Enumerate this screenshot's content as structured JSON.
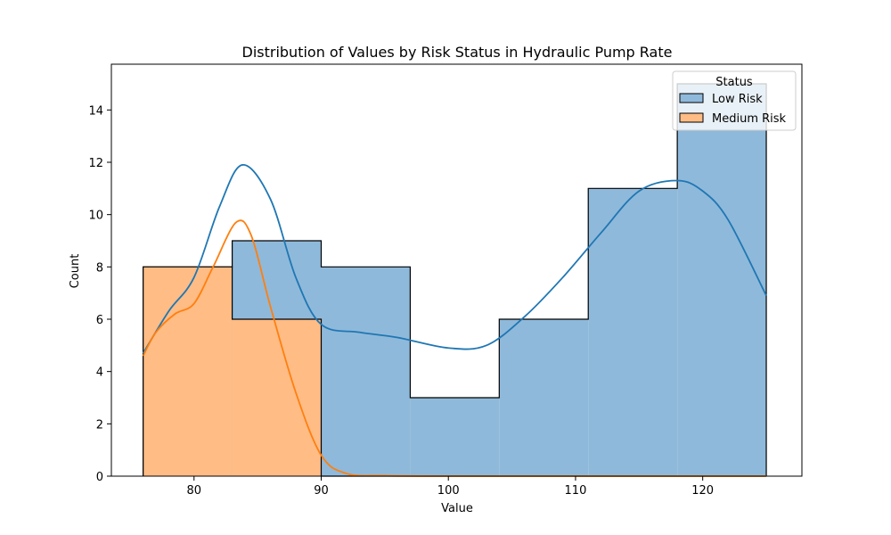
{
  "chart_data": {
    "type": "histogram",
    "title": "Distribution of Values by Risk Status in Hydraulic Pump Rate",
    "xlabel": "Value",
    "ylabel": "Count",
    "xlim": [
      73.5,
      127.8
    ],
    "ylim": [
      0,
      15.75
    ],
    "xticks": [
      80,
      90,
      100,
      110,
      120
    ],
    "yticks": [
      0,
      2,
      4,
      6,
      8,
      10,
      12,
      14
    ],
    "bin_edges": [
      76,
      83,
      90,
      97,
      104,
      111,
      118,
      125
    ],
    "legend": {
      "title": "Status",
      "position": "top-right"
    },
    "series": [
      {
        "name": "Low Risk",
        "counts": [
          8,
          9,
          8,
          3,
          6,
          11,
          15
        ],
        "fill": "#8fb9da",
        "line": "#1f77b4",
        "kde": [
          [
            76,
            4.7
          ],
          [
            78,
            6.3
          ],
          [
            80,
            7.6
          ],
          [
            82,
            10.3
          ],
          [
            83.8,
            11.9
          ],
          [
            86,
            10.6
          ],
          [
            88,
            7.6
          ],
          [
            90,
            5.8
          ],
          [
            93,
            5.5
          ],
          [
            96,
            5.3
          ],
          [
            100,
            4.9
          ],
          [
            103,
            5.0
          ],
          [
            106,
            6.1
          ],
          [
            109,
            7.6
          ],
          [
            112,
            9.3
          ],
          [
            115,
            10.9
          ],
          [
            118,
            11.3
          ],
          [
            120,
            10.9
          ],
          [
            122,
            9.8
          ],
          [
            125,
            6.9
          ]
        ]
      },
      {
        "name": "Medium Risk",
        "counts": [
          8,
          6,
          0,
          0,
          0,
          0,
          0
        ],
        "fill": "#ffbc85",
        "line": "#ff7f0e",
        "kde": [
          [
            76,
            4.6
          ],
          [
            77,
            5.5
          ],
          [
            78.5,
            6.2
          ],
          [
            80,
            6.6
          ],
          [
            81.5,
            8.0
          ],
          [
            83.3,
            9.7
          ],
          [
            84.5,
            9.2
          ],
          [
            86,
            6.5
          ],
          [
            88,
            3.2
          ],
          [
            90,
            0.8
          ],
          [
            92,
            0.1
          ],
          [
            95,
            0.02
          ],
          [
            100,
            0
          ],
          [
            110,
            0
          ],
          [
            125,
            0
          ]
        ]
      }
    ]
  }
}
